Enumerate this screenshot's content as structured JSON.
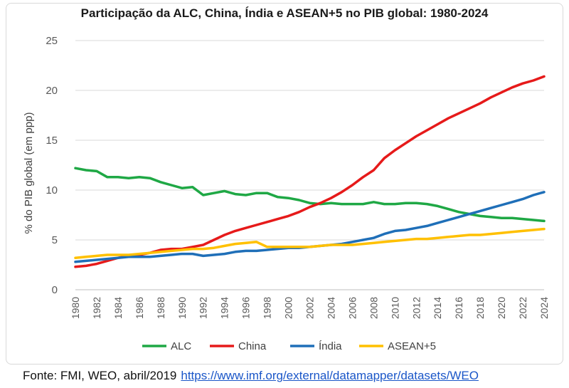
{
  "chart_data": {
    "type": "line",
    "title": "Participação da ALC, China, Índia e ASEAN+5 no PIB global: 1980-2024",
    "ylabel": "% do PIB global (em ppp)",
    "xlabel": "",
    "ylim": [
      0,
      25
    ],
    "yticks": [
      "0",
      "5",
      "10",
      "15",
      "20",
      "25"
    ],
    "x": [
      1980,
      1981,
      1982,
      1983,
      1984,
      1985,
      1986,
      1987,
      1988,
      1989,
      1990,
      1991,
      1992,
      1993,
      1994,
      1995,
      1996,
      1997,
      1998,
      1999,
      2000,
      2001,
      2002,
      2003,
      2004,
      2005,
      2006,
      2007,
      2008,
      2009,
      2010,
      2011,
      2012,
      2013,
      2014,
      2015,
      2016,
      2017,
      2018,
      2019,
      2020,
      2021,
      2022,
      2023,
      2024
    ],
    "xticks": [
      "1980",
      "1982",
      "1984",
      "1986",
      "1988",
      "1990",
      "1992",
      "1994",
      "1996",
      "1998",
      "2000",
      "2002",
      "2004",
      "2006",
      "2008",
      "2010",
      "2012",
      "2014",
      "2016",
      "2018",
      "2020",
      "2022",
      "2024"
    ],
    "grid": "horizontal",
    "legend_position": "bottom",
    "series": [
      {
        "name": "ALC",
        "color": "#1fa845",
        "values": [
          12.2,
          12.0,
          11.9,
          11.3,
          11.3,
          11.2,
          11.3,
          11.2,
          10.8,
          10.5,
          10.2,
          10.3,
          9.5,
          9.7,
          9.9,
          9.6,
          9.5,
          9.7,
          9.7,
          9.3,
          9.2,
          9.0,
          8.7,
          8.6,
          8.7,
          8.6,
          8.6,
          8.6,
          8.8,
          8.6,
          8.6,
          8.7,
          8.7,
          8.6,
          8.4,
          8.1,
          7.8,
          7.6,
          7.4,
          7.3,
          7.2,
          7.2,
          7.1,
          7.0,
          6.9
        ]
      },
      {
        "name": "China",
        "color": "#e61a1a",
        "values": [
          2.3,
          2.4,
          2.6,
          2.9,
          3.2,
          3.4,
          3.5,
          3.7,
          4.0,
          4.1,
          4.1,
          4.3,
          4.5,
          5.0,
          5.5,
          5.9,
          6.2,
          6.5,
          6.8,
          7.1,
          7.4,
          7.8,
          8.3,
          8.7,
          9.2,
          9.8,
          10.5,
          11.3,
          12.0,
          13.2,
          14.0,
          14.7,
          15.4,
          16.0,
          16.6,
          17.2,
          17.7,
          18.2,
          18.7,
          19.3,
          19.8,
          20.3,
          20.7,
          21.0,
          21.4
        ]
      },
      {
        "name": "Índia",
        "color": "#1f6fb8",
        "values": [
          2.8,
          2.9,
          3.0,
          3.1,
          3.2,
          3.3,
          3.3,
          3.3,
          3.4,
          3.5,
          3.6,
          3.6,
          3.4,
          3.5,
          3.6,
          3.8,
          3.9,
          3.9,
          4.0,
          4.1,
          4.2,
          4.2,
          4.3,
          4.4,
          4.5,
          4.6,
          4.8,
          5.0,
          5.2,
          5.6,
          5.9,
          6.0,
          6.2,
          6.4,
          6.7,
          7.0,
          7.3,
          7.6,
          7.9,
          8.2,
          8.5,
          8.8,
          9.1,
          9.5,
          9.8
        ]
      },
      {
        "name": "ASEAN+5",
        "color": "#ffc000",
        "values": [
          3.2,
          3.3,
          3.4,
          3.5,
          3.5,
          3.5,
          3.6,
          3.7,
          3.8,
          3.9,
          4.0,
          4.1,
          4.1,
          4.2,
          4.4,
          4.6,
          4.7,
          4.8,
          4.3,
          4.3,
          4.3,
          4.3,
          4.3,
          4.4,
          4.5,
          4.5,
          4.5,
          4.6,
          4.7,
          4.8,
          4.9,
          5.0,
          5.1,
          5.1,
          5.2,
          5.3,
          5.4,
          5.5,
          5.5,
          5.6,
          5.7,
          5.8,
          5.9,
          6.0,
          6.1
        ]
      }
    ]
  },
  "source": {
    "text": "Fonte: FMI, WEO, abril/2019",
    "link": "https://www.imf.org/external/datamapper/datasets/WEO"
  }
}
